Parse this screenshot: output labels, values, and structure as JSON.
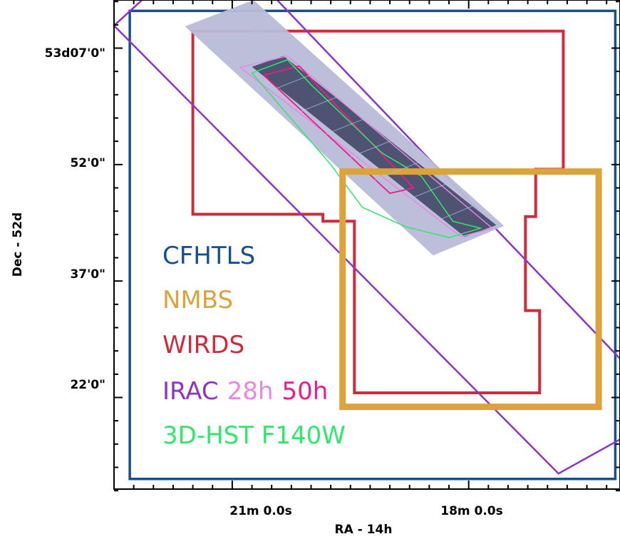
{
  "chart_data": {
    "type": "map",
    "xlabel": "RA - 14h",
    "ylabel": "Dec - 52d",
    "x_ticks": [
      {
        "label": "21m 0.0s",
        "value": 21.0
      },
      {
        "label": "18m 0.0s",
        "value": 18.0
      }
    ],
    "y_ticks": [
      {
        "label": "53d07'0\"",
        "value": 67
      },
      {
        "label": "52'0\"",
        "value": 52
      },
      {
        "label": "37'0\"",
        "value": 37
      },
      {
        "label": "22'0\"",
        "value": 22
      }
    ],
    "xlim": [
      22.5,
      16.08
    ],
    "ylim": [
      10.2,
      73.2
    ],
    "x_unit": "minutes of RA past 14h",
    "y_unit": "arcmin past 52d",
    "legend": [
      {
        "label": "CFHTLS",
        "color": "#1a4f8f"
      },
      {
        "label": "NMBS",
        "color": "#dca23c"
      },
      {
        "label": "WIRDS",
        "color": "#d12a3a"
      },
      {
        "label": "IRAC",
        "color": "#8b35c8"
      },
      {
        "label": "28h",
        "color": "#e887e2"
      },
      {
        "label": "50h",
        "color": "#ee1a8a"
      },
      {
        "label": "3D-HST F140W",
        "color": "#2ee86a"
      }
    ],
    "regions": [
      {
        "name": "CFHTLS",
        "color": "#1a4f8f",
        "polygon": [
          [
            22.3,
            71.8
          ],
          [
            16.14,
            71.8
          ],
          [
            16.14,
            11.5
          ],
          [
            22.3,
            11.5
          ]
        ]
      },
      {
        "name": "NMBS",
        "color": "#dca23c",
        "polygon": [
          [
            19.6,
            51.1
          ],
          [
            16.35,
            51.1
          ],
          [
            16.35,
            20.8
          ],
          [
            19.6,
            20.8
          ]
        ]
      },
      {
        "name": "WIRDS",
        "color": "#d12a3a",
        "polygon": [
          [
            21.5,
            69.2
          ],
          [
            16.8,
            69.2
          ],
          [
            16.8,
            51.4
          ],
          [
            17.15,
            51.4
          ],
          [
            17.15,
            45.3
          ],
          [
            17.28,
            45.3
          ],
          [
            17.28,
            33.2
          ],
          [
            17.1,
            33.2
          ],
          [
            17.1,
            22.6
          ],
          [
            19.45,
            22.6
          ],
          [
            19.45,
            44.7
          ],
          [
            19.85,
            44.7
          ],
          [
            19.85,
            45.6
          ],
          [
            21.5,
            45.6
          ]
        ]
      },
      {
        "name": "IRAC",
        "color": "#8b35c8",
        "polygon": [
          [
            21.95,
            75.0
          ],
          [
            20.6,
            75.0
          ],
          [
            16.08,
            27.0
          ],
          [
            16.08,
            16.6
          ],
          [
            16.86,
            12.2
          ],
          [
            22.5,
            69.9
          ]
        ]
      },
      {
        "name": "HST coverage",
        "color": "#b9bcd8",
        "polygon": [
          [
            21.6,
            69.8
          ],
          [
            20.73,
            73.2
          ],
          [
            17.55,
            44.1
          ],
          [
            18.45,
            40.3
          ]
        ]
      },
      {
        "name": "IRAC deep mosaic",
        "color": "#4e5372",
        "polygon": [
          [
            20.75,
            64.6
          ],
          [
            20.35,
            66.0
          ],
          [
            17.65,
            44.2
          ],
          [
            18.05,
            42.7
          ]
        ]
      },
      {
        "name": "28h",
        "color": "#e887e2",
        "polygon": [
          [
            20.9,
            64.5
          ],
          [
            20.3,
            66.0
          ],
          [
            17.7,
            43.8
          ],
          [
            18.1,
            42.7
          ]
        ]
      },
      {
        "name": "50h",
        "color": "#ee1a8a",
        "polygon": [
          [
            20.6,
            63.5
          ],
          [
            20.15,
            64.7
          ],
          [
            18.7,
            49.0
          ],
          [
            19.0,
            48.3
          ]
        ]
      },
      {
        "name": "3D-HST F140W",
        "color": "#2ee86a",
        "polygon": [
          [
            20.75,
            63.8
          ],
          [
            20.3,
            65.5
          ],
          [
            20.0,
            62.3
          ],
          [
            19.1,
            53.5
          ],
          [
            18.6,
            50.5
          ],
          [
            18.2,
            44.7
          ],
          [
            17.85,
            43.8
          ],
          [
            18.25,
            42.6
          ],
          [
            18.8,
            44.0
          ],
          [
            19.35,
            46.5
          ],
          [
            19.75,
            52.0
          ]
        ]
      }
    ],
    "grid": false
  }
}
